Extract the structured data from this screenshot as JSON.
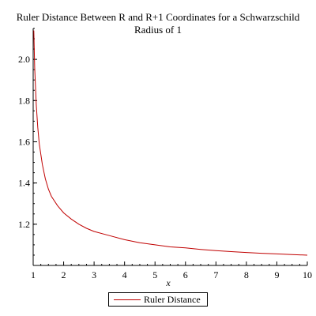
{
  "chart_data": {
    "type": "line",
    "title_line1": "Ruler Distance Between R and R+1 Coordinates for a Schwarzschild",
    "title_line2": "Radius of 1",
    "xlabel": "x",
    "ylabel": "",
    "xlim": [
      1,
      10
    ],
    "ylim": [
      1.0,
      2.15
    ],
    "x_ticks": [
      1,
      2,
      3,
      4,
      5,
      6,
      7,
      8,
      9,
      10
    ],
    "y_ticks": [
      1.2,
      1.4,
      1.6,
      1.8,
      2.0
    ],
    "y_tick_labels": [
      "1.2",
      "1.4",
      "1.6",
      "1.8",
      "2.0"
    ],
    "grid": false,
    "legend_placement": "bottom-center",
    "series": [
      {
        "name": "Ruler Distance",
        "color": "#c00000",
        "x": [
          1.02,
          1.05,
          1.1,
          1.15,
          1.2,
          1.3,
          1.4,
          1.5,
          1.6,
          1.8,
          2.0,
          2.25,
          2.5,
          2.75,
          3.0,
          3.5,
          4.0,
          4.5,
          5.0,
          5.5,
          6.0,
          6.5,
          7.0,
          7.5,
          8.0,
          8.5,
          9.0,
          9.5,
          10.0
        ],
        "y": [
          2.14,
          1.96,
          1.78,
          1.67,
          1.59,
          1.49,
          1.42,
          1.37,
          1.335,
          1.29,
          1.255,
          1.225,
          1.2,
          1.18,
          1.165,
          1.145,
          1.125,
          1.11,
          1.1,
          1.09,
          1.085,
          1.078,
          1.072,
          1.067,
          1.063,
          1.059,
          1.056,
          1.053,
          1.05
        ]
      }
    ]
  }
}
